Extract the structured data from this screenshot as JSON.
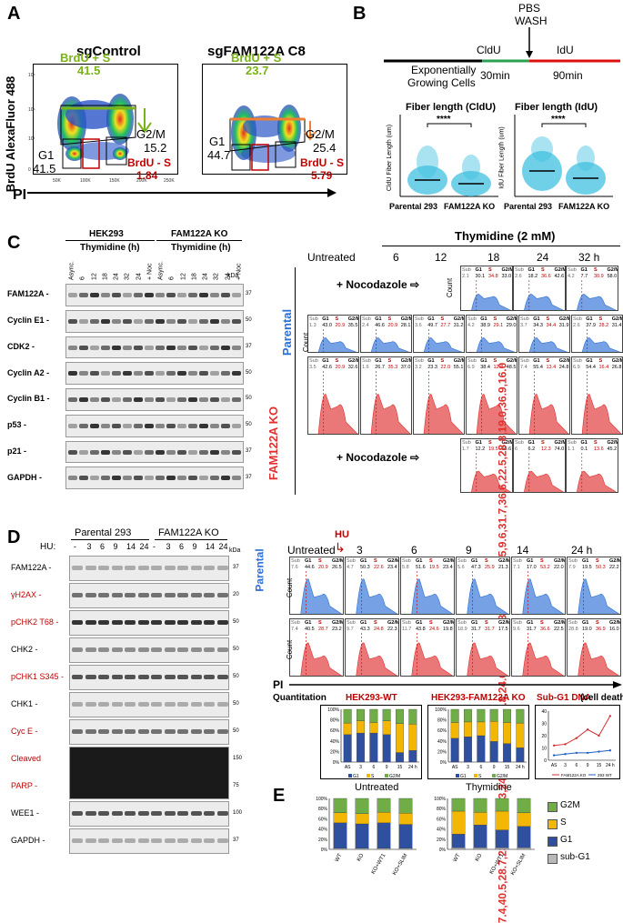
{
  "panel_labels": {
    "a": "A",
    "b": "B",
    "c": "C",
    "d": "D",
    "e": "E"
  },
  "panelA": {
    "ylabel": "BrdU AlexaFluor 488",
    "xlabel": "PI",
    "ticks_y": [
      "10⁵",
      "10⁴",
      "10³",
      "0"
    ],
    "ticks_x": [
      "0",
      "50K",
      "100K",
      "150K",
      "200K",
      "250K"
    ],
    "plots": [
      {
        "title": "sgControl",
        "brdu_s_label": "BrdU + S",
        "brdu_s_val": "41.5",
        "g1_label": "G1",
        "g1_val": "41.5",
        "g2m_label": "G2/M",
        "g2m_val": "15.2",
        "neg_label": "BrdU - S",
        "neg_val": "1.84",
        "accent": "#7ab317"
      },
      {
        "title": "sgFAM122A C8",
        "brdu_s_label": "BrdU + S",
        "brdu_s_val": "23.7",
        "g1_label": "G1",
        "g1_val": "44.7",
        "g2m_label": "G2/M",
        "g2m_val": "25.4",
        "neg_label": "BrdU - S",
        "neg_val": "5.79",
        "accent": "#f08030"
      }
    ]
  },
  "panelB": {
    "pbs": "PBS",
    "wash": "WASH",
    "cldu": "CldU",
    "idu": "IdU",
    "exp1": "Exponentially",
    "exp2": "Growing Cells",
    "t30": "30min",
    "t90": "90min",
    "plots": [
      {
        "title": "Fiber length (CldU)",
        "ylabel": "CldU Fiber Length (um)",
        "sig": "****",
        "yticks": [
          "50",
          "40",
          "30",
          "20",
          "10",
          "0"
        ]
      },
      {
        "title": "Fiber length (IdU)",
        "ylabel": "IdU Fiber Length (um)",
        "sig": "****",
        "yticks": [
          "80",
          "60",
          "40",
          "20",
          "0"
        ]
      }
    ],
    "xcats": [
      "Parental 293",
      "FAM122A KO"
    ]
  },
  "panelC": {
    "group1": "HEK293",
    "group2": "FAM122A KO",
    "thymidine": "Thymidine (h)",
    "lanes1": [
      "Async.",
      "6",
      "12",
      "18",
      "24",
      "32",
      "24",
      "+ Noc"
    ],
    "lanes2": [
      "Async.",
      "6",
      "12",
      "18",
      "24",
      "32",
      "24",
      "+ Noc"
    ],
    "kda": "kDa",
    "rows": [
      {
        "name": "FAM122A",
        "kda": "37"
      },
      {
        "name": "Cyclin E1",
        "kda": "50"
      },
      {
        "name": "CDK2",
        "kda": "37"
      },
      {
        "name": "Cyclin A2",
        "kda": "50"
      },
      {
        "name": "Cyclin B1",
        "kda": "50"
      },
      {
        "name": "p53",
        "kda": "50"
      },
      {
        "name": "p21",
        "kda": "37"
      },
      {
        "name": "GAPDH",
        "kda": "37"
      }
    ],
    "flow_title": "Thymidine (2 mM)",
    "untreated": "Untreated",
    "times": [
      "6",
      "12",
      "18",
      "24",
      "32 h"
    ],
    "parental": "Parental",
    "ko": "FAM122A KO",
    "noc": "+ Nocodazole ⇨",
    "count": "Count",
    "hdr": [
      "Sub",
      "G1",
      "S",
      "G2/M"
    ],
    "par_noc": [
      [
        "2.1",
        "30.1",
        "34.8",
        "33.0"
      ],
      [
        "2.6",
        "18.2",
        "36.6",
        "42.6"
      ],
      [
        "4.2",
        "7.7",
        "30.9",
        "58.0"
      ]
    ],
    "par_row": [
      [
        "1.3",
        "43.0",
        "20.9",
        "35.5"
      ],
      [
        "2.4",
        "46.6",
        "20.9",
        "28.1"
      ],
      [
        "3.6",
        "49.7",
        "27.7",
        "31.2"
      ],
      [
        "4.2",
        "38.9",
        "29.1",
        "29.0"
      ],
      [
        "3.7",
        "34.3",
        "34.4",
        "31.9"
      ],
      [
        "2.6",
        "37.9",
        "28.2",
        "31.4"
      ]
    ],
    "ko_row": [
      [
        "3.5",
        "42.6",
        "20.9",
        "32.6"
      ],
      [
        "1.6",
        "26.7",
        "35.3",
        "37.0"
      ],
      [
        "3.2",
        "23.3",
        "22.0",
        "55.1"
      ],
      [
        "6.9",
        "38.4",
        "12.8",
        "48.5"
      ],
      [
        "7.4",
        "55.4",
        "13.4",
        "24.8"
      ],
      [
        "6.9",
        "54.4",
        "16.4",
        "26.8"
      ]
    ],
    "ko_noc": [
      [
        "1.7",
        "12.2",
        "19.5",
        "66.6"
      ],
      [
        "6",
        "6.2",
        "12.3",
        "74.0"
      ],
      [
        "1.1",
        "0.1",
        "13.6",
        "45.2"
      ]
    ]
  },
  "panelD": {
    "hu": "HU:",
    "group1": "Parental 293",
    "group2": "FAM122A KO",
    "kda": "kDa",
    "lanes": [
      "-",
      "3",
      "6",
      "9",
      "14",
      "24",
      "-",
      "3",
      "6",
      "9",
      "14",
      "24"
    ],
    "rows": [
      {
        "name": "FAM122A",
        "color": "#000",
        "kda": "37"
      },
      {
        "name": "γH2AX",
        "color": "#c00000",
        "kda": "20"
      },
      {
        "name": "pCHK2 T68",
        "color": "#c00000",
        "kda": "50"
      },
      {
        "name": "CHK2",
        "color": "#000",
        "kda": "50"
      },
      {
        "name": "pCHK1 S345",
        "color": "#c00000",
        "kda": "50"
      },
      {
        "name": "CHK1",
        "color": "#000",
        "kda": "50"
      },
      {
        "name": "Cyc E",
        "color": "#c00000",
        "kda": "50"
      },
      {
        "name": "Cleaved",
        "color": "#c00000",
        "kda": "150"
      },
      {
        "name": "PARP",
        "color": "#c00000",
        "kda": "75"
      },
      {
        "name": "WEE1",
        "color": "#000",
        "kda": "100"
      },
      {
        "name": "GAPDH",
        "color": "#000",
        "kda": "37"
      }
    ],
    "flow_untreated": "Untreated",
    "flow_hu": "HU",
    "times": [
      "3",
      "6",
      "9",
      "14",
      "24 h"
    ],
    "parental": "Parental",
    "ko": [
      [
        "7.4",
        "40.5",
        "28.7",
        "23.2"
      ],
      [
        "9.7",
        "43.3",
        "24.8",
        "22.3"
      ],
      [
        "11.7",
        "43.8",
        "24.6",
        "19.8"
      ],
      [
        "18.9",
        "31.7",
        "31.7",
        "17.5"
      ],
      [
        "9.6",
        "31.7",
        "36.6",
        "22.5"
      ],
      [
        "28.8",
        "19.0",
        "36.9",
        "16.0"
      ]
    ],
    "count": "Count",
    "pi": "PI",
    "par": [
      [
        "7.6",
        "44.6",
        "20.9",
        "26.5"
      ],
      [
        "4.7",
        "50.3",
        "22.6",
        "23.4"
      ],
      [
        "5.8",
        "51.6",
        "19.5",
        "23.4"
      ],
      [
        "5.6",
        "47.3",
        "25.9",
        "21.3"
      ],
      [
        "7.1",
        "17.0",
        "53.2",
        "22.0"
      ],
      [
        "7.9",
        "19.5",
        "50.3",
        "22.2"
      ]
    ],
    "quant_label": "Quantitation"
  },
  "chart_data": [
    {
      "type": "bar",
      "title": "HEK293-WT",
      "categories": [
        "AS",
        "3",
        "6",
        "9",
        "15",
        "24 h"
      ],
      "ylim": [
        0,
        100
      ],
      "series": [
        {
          "name": "G1",
          "values": [
            52,
            55,
            55,
            52,
            18,
            22
          ]
        },
        {
          "name": "S",
          "values": [
            22,
            23,
            20,
            26,
            55,
            50
          ]
        },
        {
          "name": "G2/M",
          "values": [
            26,
            22,
            25,
            22,
            27,
            28
          ]
        }
      ],
      "yticks": [
        "100%",
        "80%",
        "60%",
        "40%",
        "20%",
        "0%"
      ]
    },
    {
      "type": "bar",
      "title": "HEK293-FAM122A KO",
      "categories": [
        "AS",
        "3",
        "6",
        "9",
        "15",
        "24 h"
      ],
      "ylim": [
        0,
        100
      ],
      "series": [
        {
          "name": "G1",
          "values": [
            45,
            48,
            50,
            39,
            35,
            27
          ]
        },
        {
          "name": "S",
          "values": [
            30,
            28,
            26,
            38,
            40,
            47
          ]
        },
        {
          "name": "G2/M",
          "values": [
            25,
            24,
            24,
            23,
            25,
            26
          ]
        }
      ],
      "yticks": [
        "100%",
        "80%",
        "60%",
        "40%",
        "20%",
        "0%"
      ]
    },
    {
      "type": "line",
      "title": "Sub-G1 DNA",
      "subtitle": "(cell death)",
      "categories": [
        "AS",
        "3",
        "6",
        "9",
        "15",
        "24 h"
      ],
      "ylim": [
        0,
        40
      ],
      "series": [
        {
          "name": "FAM122A KO",
          "color": "#d03030",
          "values": [
            12,
            13,
            18,
            25,
            20,
            36
          ]
        },
        {
          "name": "293 WT",
          "color": "#2060c0",
          "values": [
            4,
            5,
            6,
            6,
            7,
            8
          ]
        }
      ],
      "yticks": [
        "40",
        "30",
        "20",
        "10",
        "0"
      ]
    },
    {
      "type": "bar",
      "title": "Untreated",
      "categories": [
        "WT",
        "KO",
        "KO+WT1",
        "KO+SLIM"
      ],
      "ylim": [
        0,
        100
      ],
      "series": [
        {
          "name": "sub-G1",
          "values": [
            2,
            2,
            2,
            2
          ]
        },
        {
          "name": "G1",
          "values": [
            50,
            48,
            50,
            47
          ]
        },
        {
          "name": "S",
          "values": [
            20,
            20,
            21,
            22
          ]
        },
        {
          "name": "G2M",
          "values": [
            28,
            30,
            27,
            29
          ]
        }
      ],
      "yticks": [
        "100%",
        "80%",
        "60%",
        "40%",
        "20%",
        "0%"
      ]
    },
    {
      "type": "bar",
      "title": "Thymidine",
      "categories": [
        "WT",
        "KO",
        "KO+WT1",
        "KO+SLIM"
      ],
      "ylim": [
        0,
        100
      ],
      "series": [
        {
          "name": "sub-G1",
          "values": [
            3,
            3,
            3,
            3
          ]
        },
        {
          "name": "G1",
          "values": [
            27,
            45,
            35,
            42
          ]
        },
        {
          "name": "S",
          "values": [
            45,
            25,
            37,
            27
          ]
        },
        {
          "name": "G2M",
          "values": [
            25,
            27,
            25,
            28
          ]
        }
      ],
      "yticks": [
        "100%",
        "80%",
        "60%",
        "40%",
        "20%",
        "0%"
      ]
    }
  ],
  "legend3": [
    "G1",
    "S",
    "G2/M"
  ],
  "legend4": [
    "G2M",
    "S",
    "G1",
    "sub-G1"
  ],
  "colors": {
    "g1": "#2f4f9f",
    "s": "#f2b705",
    "g2m": "#70ad47",
    "sub": "#b8b8b8",
    "parental_blue": "#2c6fd6",
    "ko_red": "#e03030"
  }
}
